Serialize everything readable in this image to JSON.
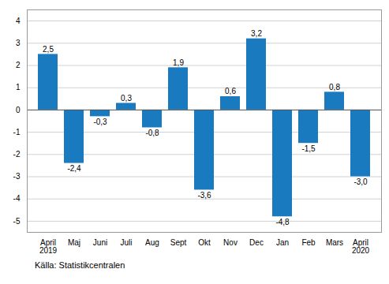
{
  "chart_data": {
    "type": "bar",
    "categories": [
      "April\n2019",
      "Maj",
      "Juni",
      "Juli",
      "Aug",
      "Sept",
      "Okt",
      "Nov",
      "Dec",
      "Jan",
      "Feb",
      "Mars",
      "April\n2020"
    ],
    "values": [
      2.5,
      -2.4,
      -0.3,
      0.3,
      -0.8,
      1.9,
      -3.6,
      0.6,
      3.2,
      -4.8,
      -1.5,
      0.8,
      -3.0
    ],
    "value_labels": [
      "2,5",
      "-2,4",
      "-0,3",
      "0,3",
      "-0,8",
      "1,9",
      "-3,6",
      "0,6",
      "3,2",
      "-4,8",
      "-1,5",
      "0,8",
      "-3,0"
    ],
    "data_labels": true,
    "color": "#1a7abf",
    "ylim": [
      -5.5,
      4.5
    ],
    "yticks": [
      -5,
      -4,
      -3,
      -2,
      -1,
      0,
      1,
      2,
      3,
      4
    ],
    "grid": true,
    "annotations": [
      "Källa: Statistikcentralen"
    ]
  }
}
